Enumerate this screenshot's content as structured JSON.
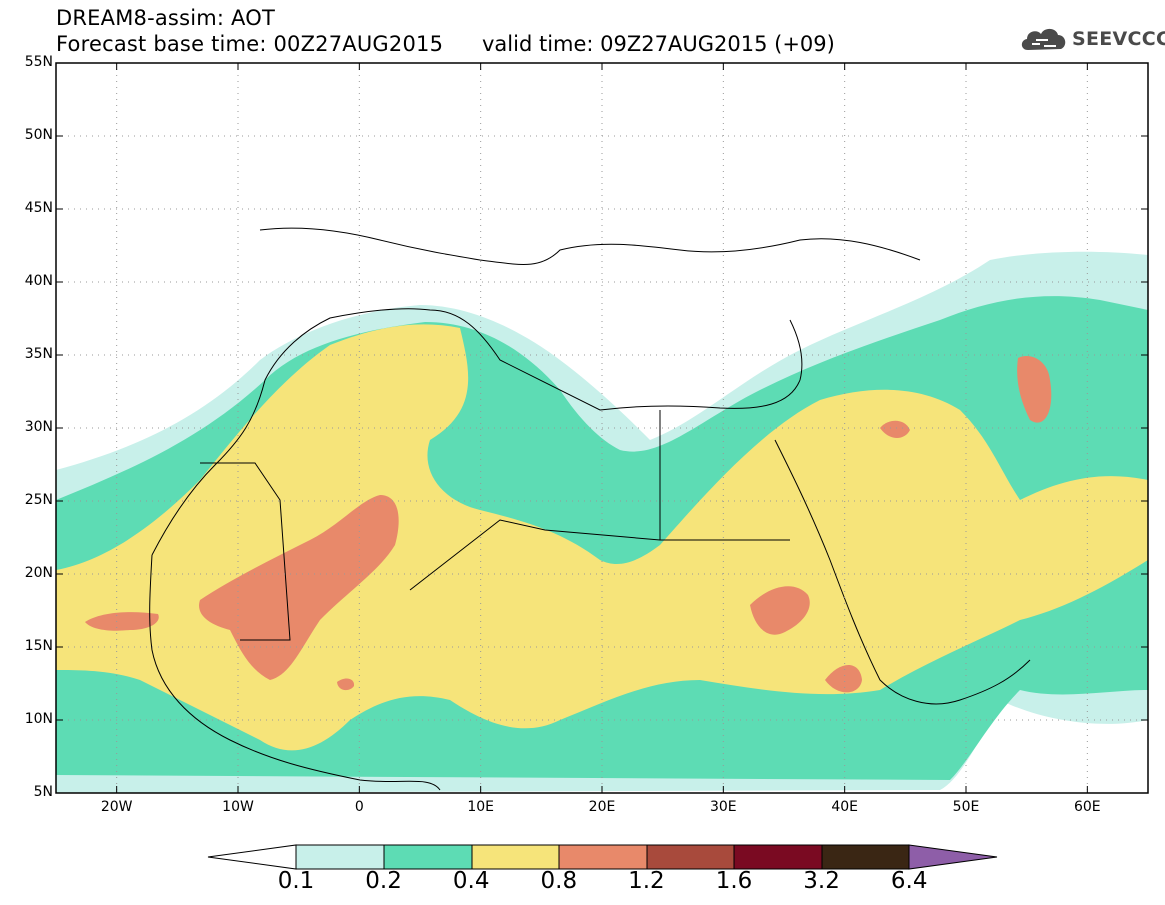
{
  "title": {
    "line1": "DREAM8-assim: AOT",
    "line2": "Forecast base time: 00Z27AUG2015",
    "valid": "valid time: 09Z27AUG2015 (+09)"
  },
  "logo": {
    "text": "SEEVCCC",
    "icon": "cloud-icon"
  },
  "map": {
    "lat_labels": [
      "55N",
      "50N",
      "45N",
      "40N",
      "35N",
      "30N",
      "25N",
      "20N",
      "15N",
      "10N",
      "5N"
    ],
    "lat_values": [
      55,
      50,
      45,
      40,
      35,
      30,
      25,
      20,
      15,
      10,
      5
    ],
    "lon_labels": [
      "20W",
      "10W",
      "0",
      "10E",
      "20E",
      "30E",
      "40E",
      "50E",
      "60E"
    ],
    "lon_values": [
      -20,
      -10,
      0,
      10,
      20,
      30,
      40,
      50,
      60
    ],
    "extent": {
      "lon_min": -25,
      "lon_max": 65,
      "lat_min": 5,
      "lat_max": 55
    }
  },
  "colorbar": {
    "labels": [
      "0.1",
      "0.2",
      "0.4",
      "0.8",
      "1.2",
      "1.6",
      "3.2",
      "6.4"
    ],
    "colors": [
      "#ffffff",
      "#c8f0ea",
      "#5ddcb4",
      "#f6e47a",
      "#e8896a",
      "#a84a3c",
      "#7a0a22",
      "#3a2614",
      "#8e5ea8"
    ]
  }
}
